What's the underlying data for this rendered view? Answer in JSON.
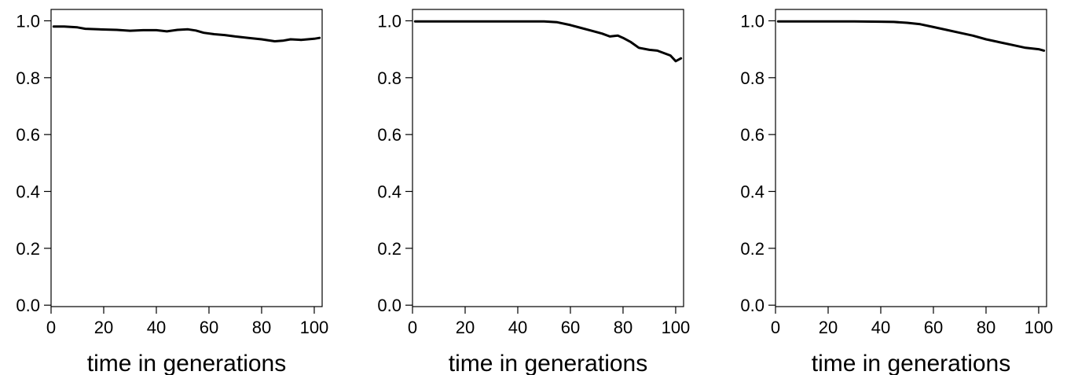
{
  "chart_data": [
    {
      "type": "line",
      "xlabel": "time in generations",
      "ylabel": "",
      "xlim": [
        0,
        103
      ],
      "ylim": [
        -0.005,
        1.04
      ],
      "xticks": [
        0,
        20,
        40,
        60,
        80,
        100
      ],
      "yticks": [
        0.0,
        0.2,
        0.4,
        0.6,
        0.8,
        1.0
      ],
      "xtick_labels": [
        "0",
        "20",
        "40",
        "60",
        "80",
        "100"
      ],
      "ytick_labels": [
        "0.0",
        "0.2",
        "0.4",
        "0.6",
        "0.8",
        "1.0"
      ],
      "grid": false,
      "series": [
        {
          "color": "#000000",
          "x": [
            1,
            5,
            10,
            13,
            18,
            25,
            30,
            35,
            40,
            44,
            48,
            52,
            55,
            58,
            62,
            66,
            70,
            75,
            80,
            85,
            88,
            91,
            95,
            100,
            102
          ],
          "y": [
            0.98,
            0.98,
            0.977,
            0.972,
            0.97,
            0.968,
            0.965,
            0.967,
            0.967,
            0.963,
            0.968,
            0.97,
            0.966,
            0.958,
            0.953,
            0.95,
            0.945,
            0.94,
            0.935,
            0.928,
            0.93,
            0.935,
            0.933,
            0.937,
            0.94
          ]
        }
      ]
    },
    {
      "type": "line",
      "xlabel": "time in generations",
      "ylabel": "",
      "xlim": [
        0,
        103
      ],
      "ylim": [
        -0.005,
        1.04
      ],
      "xticks": [
        0,
        20,
        40,
        60,
        80,
        100
      ],
      "yticks": [
        0.0,
        0.2,
        0.4,
        0.6,
        0.8,
        1.0
      ],
      "xtick_labels": [
        "0",
        "20",
        "40",
        "60",
        "80",
        "100"
      ],
      "ytick_labels": [
        "0.0",
        "0.2",
        "0.4",
        "0.6",
        "0.8",
        "1.0"
      ],
      "grid": false,
      "series": [
        {
          "color": "#000000",
          "x": [
            1,
            10,
            20,
            30,
            40,
            50,
            55,
            60,
            64,
            68,
            72,
            75,
            78,
            80,
            83,
            86,
            90,
            93,
            96,
            98,
            100,
            102
          ],
          "y": [
            0.998,
            0.998,
            0.998,
            0.998,
            0.998,
            0.998,
            0.995,
            0.985,
            0.975,
            0.965,
            0.955,
            0.945,
            0.948,
            0.94,
            0.925,
            0.905,
            0.898,
            0.895,
            0.885,
            0.878,
            0.858,
            0.868
          ]
        }
      ]
    },
    {
      "type": "line",
      "xlabel": "time in generations",
      "ylabel": "",
      "xlim": [
        0,
        103
      ],
      "ylim": [
        -0.005,
        1.04
      ],
      "xticks": [
        0,
        20,
        40,
        60,
        80,
        100
      ],
      "yticks": [
        0.0,
        0.2,
        0.4,
        0.6,
        0.8,
        1.0
      ],
      "xtick_labels": [
        "0",
        "20",
        "40",
        "60",
        "80",
        "100"
      ],
      "ytick_labels": [
        "0.0",
        "0.2",
        "0.4",
        "0.6",
        "0.8",
        "1.0"
      ],
      "grid": false,
      "series": [
        {
          "color": "#000000",
          "x": [
            1,
            10,
            20,
            30,
            40,
            45,
            50,
            55,
            60,
            65,
            70,
            75,
            80,
            85,
            90,
            95,
            100,
            102
          ],
          "y": [
            0.998,
            0.998,
            0.998,
            0.998,
            0.997,
            0.996,
            0.993,
            0.988,
            0.978,
            0.968,
            0.958,
            0.948,
            0.935,
            0.925,
            0.915,
            0.905,
            0.9,
            0.895
          ]
        }
      ]
    }
  ]
}
